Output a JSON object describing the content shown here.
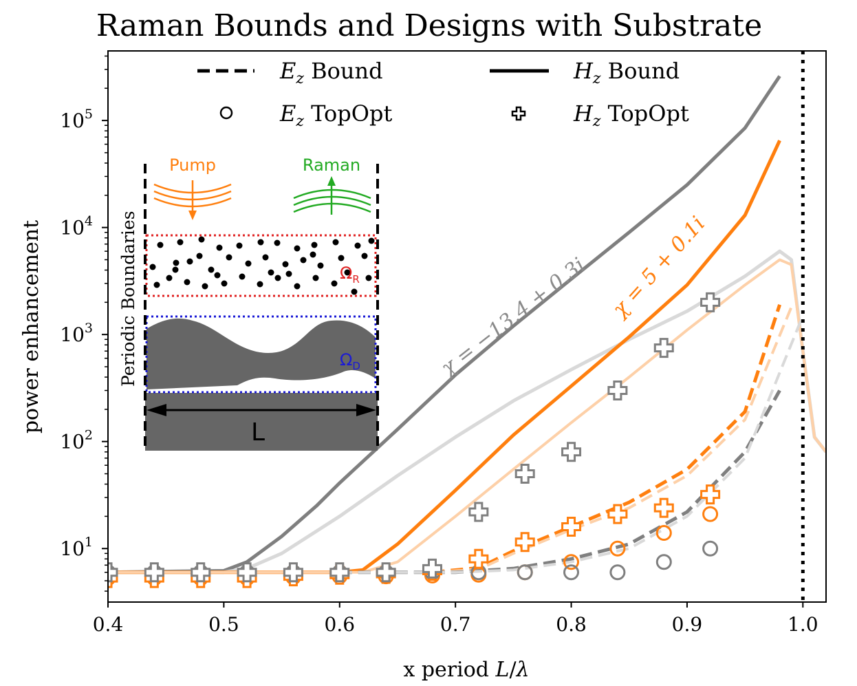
{
  "chart_data": {
    "type": "line",
    "title": "Raman Bounds and Designs with Substrate",
    "xlabel": "x period L/λ",
    "ylabel": "power enhancement",
    "xlim": [
      0.4,
      1.02
    ],
    "ylim_log10": [
      0.5,
      5.65
    ],
    "yscale": "log",
    "x_ticks": [
      {
        "value": 0.4,
        "label": "0.4"
      },
      {
        "value": 0.5,
        "label": "0.5"
      },
      {
        "value": 0.6,
        "label": "0.6"
      },
      {
        "value": 0.7,
        "label": "0.7"
      },
      {
        "value": 0.8,
        "label": "0.8"
      },
      {
        "value": 0.9,
        "label": "0.9"
      },
      {
        "value": 1.0,
        "label": "1.0"
      }
    ],
    "y_ticks": [
      {
        "exp": 1,
        "base": "10",
        "sup": "1"
      },
      {
        "exp": 2,
        "base": "10",
        "sup": "2"
      },
      {
        "exp": 3,
        "base": "10",
        "sup": "3"
      },
      {
        "exp": 4,
        "base": "10",
        "sup": "4"
      },
      {
        "exp": 5,
        "base": "10",
        "sup": "5"
      }
    ],
    "vline_x": 1.0,
    "colors": {
      "gray": "#7f7f7f",
      "gray_light": "#d9d9d9",
      "orange": "#ff7f0e",
      "orange_light": "#fdd0a8"
    },
    "legend": {
      "placement": "top",
      "entries": [
        {
          "style": "dashed",
          "sym": "E",
          "sub": "z",
          "text": " Bound"
        },
        {
          "style": "solid",
          "sym": "H",
          "sub": "z",
          "text": " Bound"
        },
        {
          "style": "circle",
          "sym": "E",
          "sub": "z",
          "text": " TopOpt"
        },
        {
          "style": "plus",
          "sym": "H",
          "sub": "z",
          "text": " TopOpt"
        }
      ]
    },
    "annotations": {
      "gray": "χ = −13.4 + 0.3i",
      "orange": "χ = 5 + 0.1i"
    },
    "series": [
      {
        "color": "gray",
        "style": "solid",
        "width": 5,
        "x": [
          0.4,
          0.5,
          0.52,
          0.55,
          0.58,
          0.6,
          0.65,
          0.7,
          0.75,
          0.8,
          0.85,
          0.9,
          0.95,
          0.98
        ],
        "y": [
          6,
          6.2,
          7.5,
          13,
          25,
          41,
          130,
          420,
          1200,
          3300,
          9000,
          25000,
          85000,
          260000
        ]
      },
      {
        "color": "gray_light",
        "style": "solid",
        "width": 5,
        "x": [
          0.4,
          0.5,
          0.52,
          0.55,
          0.6,
          0.65,
          0.7,
          0.75,
          0.8,
          0.85,
          0.9,
          0.95,
          0.98,
          0.99,
          1.0,
          1.01,
          1.02
        ],
        "y": [
          6,
          6,
          6.5,
          9,
          20,
          48,
          110,
          240,
          470,
          900,
          1650,
          3500,
          6000,
          5000,
          700,
          110,
          80
        ]
      },
      {
        "color": "orange",
        "style": "solid",
        "width": 5,
        "x": [
          0.4,
          0.6,
          0.62,
          0.65,
          0.7,
          0.75,
          0.8,
          0.85,
          0.9,
          0.95,
          0.98
        ],
        "y": [
          6,
          6,
          6.3,
          11,
          35,
          115,
          330,
          950,
          2900,
          13000,
          65000
        ]
      },
      {
        "color": "orange_light",
        "style": "solid",
        "width": 4,
        "x": [
          0.4,
          0.62,
          0.65,
          0.7,
          0.75,
          0.8,
          0.85,
          0.9,
          0.95,
          0.98,
          0.99,
          1.0,
          1.01,
          1.02
        ],
        "y": [
          6,
          6,
          7.5,
          20,
          55,
          150,
          400,
          1100,
          2900,
          5000,
          4500,
          700,
          110,
          80
        ]
      },
      {
        "color": "orange",
        "style": "dashed",
        "width": 5,
        "x": [
          0.68,
          0.72,
          0.75,
          0.8,
          0.85,
          0.9,
          0.95,
          0.98
        ],
        "y": [
          6,
          6.6,
          9.5,
          16,
          27,
          55,
          190,
          1900
        ]
      },
      {
        "color": "orange_light",
        "style": "dashed",
        "width": 4,
        "x": [
          0.68,
          0.72,
          0.75,
          0.8,
          0.85,
          0.9,
          0.95,
          0.99
        ],
        "y": [
          6,
          6.4,
          9,
          15,
          24,
          48,
          160,
          1800
        ]
      },
      {
        "color": "gray",
        "style": "dashed",
        "width": 5,
        "x": [
          0.6,
          0.7,
          0.75,
          0.8,
          0.85,
          0.9,
          0.95,
          0.98
        ],
        "y": [
          6,
          6,
          6.5,
          8,
          11,
          22,
          80,
          300
        ]
      },
      {
        "color": "gray_light",
        "style": "dashed",
        "width": 4,
        "x": [
          0.6,
          0.7,
          0.75,
          0.8,
          0.85,
          0.9,
          0.95,
          1.0
        ],
        "y": [
          6,
          6,
          6.3,
          7.5,
          10,
          20,
          70,
          1500
        ]
      }
    ],
    "markers": [
      {
        "series": "E_z TopOpt",
        "color": "orange",
        "shape": "circle",
        "x": [
          0.4,
          0.44,
          0.48,
          0.52,
          0.56,
          0.6,
          0.64,
          0.68,
          0.72,
          0.76,
          0.8,
          0.84,
          0.88,
          0.92
        ],
        "y": [
          5.3,
          5.3,
          5.3,
          5.3,
          5.4,
          5.5,
          5.5,
          5.6,
          5.7,
          6,
          7.5,
          10,
          14,
          21
        ]
      },
      {
        "series": "E_z TopOpt",
        "color": "gray",
        "shape": "circle",
        "x": [
          0.4,
          0.44,
          0.48,
          0.52,
          0.56,
          0.6,
          0.64,
          0.68,
          0.72,
          0.76,
          0.8,
          0.84,
          0.88,
          0.92
        ],
        "y": [
          6,
          6,
          6,
          6,
          6,
          6,
          6,
          6,
          6,
          6,
          6,
          6,
          7.5,
          10
        ]
      },
      {
        "series": "H_z TopOpt",
        "color": "orange",
        "shape": "plus",
        "x": [
          0.4,
          0.44,
          0.48,
          0.52,
          0.56,
          0.6,
          0.64,
          0.68,
          0.72,
          0.76,
          0.8,
          0.84,
          0.88,
          0.92
        ],
        "y": [
          5.3,
          5.3,
          5.3,
          5.3,
          5.5,
          5.7,
          5.8,
          6.2,
          8,
          11.5,
          16,
          21,
          24,
          32
        ]
      },
      {
        "series": "H_z TopOpt",
        "color": "gray",
        "shape": "plus",
        "x": [
          0.4,
          0.44,
          0.48,
          0.52,
          0.56,
          0.6,
          0.64,
          0.68,
          0.72,
          0.76,
          0.8,
          0.84,
          0.88,
          0.92
        ],
        "y": [
          6,
          6,
          6,
          6,
          6,
          6,
          6,
          6.5,
          22,
          50,
          80,
          300,
          750,
          2000
        ]
      }
    ]
  },
  "inset": {
    "pump_label": "Pump",
    "raman_label": "Raman",
    "periodic_label": "Periodic Boundaries",
    "omega_r_label": "Ω",
    "omega_r_sub": "R",
    "omega_d_label": "Ω",
    "omega_d_sub": "D",
    "length_label": "L",
    "pump_color": "#ff7f0e",
    "raman_color": "#22aa22",
    "omega_r_color": "#e02020",
    "omega_d_color": "#1a1ad6",
    "material_color": "#666666"
  }
}
